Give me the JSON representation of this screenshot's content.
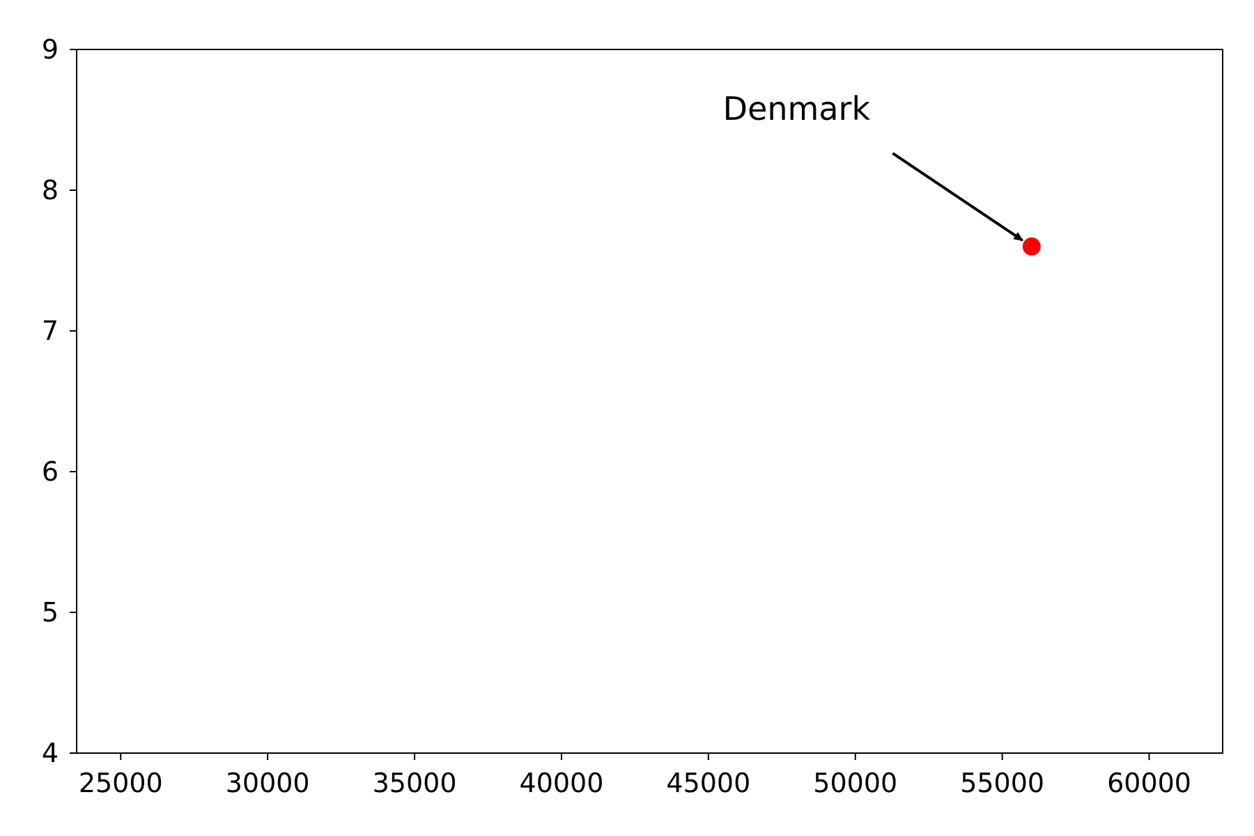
{
  "chart_data": {
    "type": "scatter",
    "title": "",
    "xlabel": "",
    "ylabel": "",
    "xlim": [
      23500,
      62500
    ],
    "ylim": [
      4,
      9
    ],
    "x_ticks": [
      25000,
      30000,
      35000,
      40000,
      45000,
      50000,
      55000,
      60000
    ],
    "y_ticks": [
      4,
      5,
      6,
      7,
      8,
      9
    ],
    "grid": false,
    "points": [
      {
        "x": 56000,
        "y": 7.6,
        "color": "#ff0000"
      }
    ],
    "annotations": [
      {
        "text": "Denmark",
        "target_x": 56000,
        "target_y": 7.6,
        "text_x": 48000,
        "text_y": 8.5
      }
    ]
  }
}
